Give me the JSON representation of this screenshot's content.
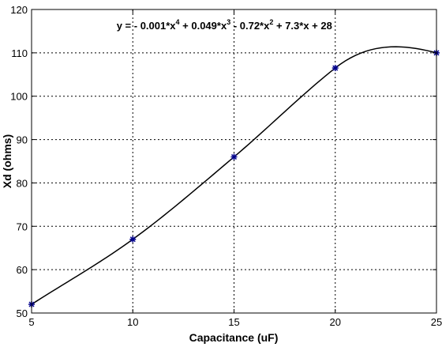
{
  "chart_data": {
    "type": "line",
    "title": "",
    "xlabel": "Capacitance (uF)",
    "ylabel": "Xd (ohms)",
    "xlim": [
      5,
      25
    ],
    "ylim": [
      50,
      120
    ],
    "xticks": [
      5,
      10,
      15,
      20,
      25
    ],
    "yticks": [
      50,
      60,
      70,
      80,
      90,
      100,
      110,
      120
    ],
    "grid": true,
    "series": [
      {
        "points": [
          {
            "x": 5,
            "y": 52
          },
          {
            "x": 10,
            "y": 67
          },
          {
            "x": 15,
            "y": 86
          },
          {
            "x": 20,
            "y": 106.5
          },
          {
            "x": 25,
            "y": 110
          }
        ],
        "marker": "star",
        "marker_color": "#00008b"
      }
    ],
    "fit": {
      "coefficients": [
        -0.001,
        0.049,
        -0.72,
        7.3,
        28
      ],
      "color": "#000000"
    },
    "annotation": {
      "parts": [
        {
          "t": "y = - 0.001*x"
        },
        {
          "t": "4",
          "sup": true
        },
        {
          "t": " + 0.049*x"
        },
        {
          "t": "3",
          "sup": true
        },
        {
          "t": " - 0.72*x"
        },
        {
          "t": "2",
          "sup": true
        },
        {
          "t": " + 7.3*x + 28"
        }
      ],
      "x": 9.2,
      "y": 115.4
    }
  }
}
